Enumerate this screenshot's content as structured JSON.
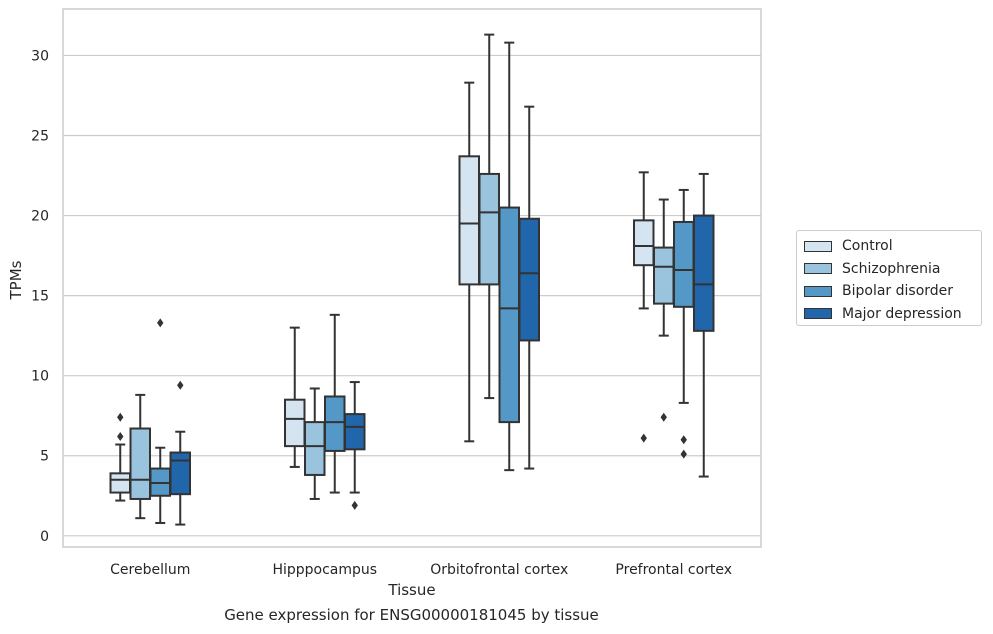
{
  "caption": "Gene expression for ENSG00000181045 by tissue",
  "chart_data": {
    "type": "box",
    "xlabel": "Tissue",
    "ylabel": "TPMs",
    "ylim": [
      -0.7,
      32.9
    ],
    "yticks": [
      0,
      5,
      10,
      15,
      20,
      25,
      30
    ],
    "grid": "horizontal",
    "legend_position": "right",
    "categories": [
      "Cerebellum",
      "Hipppocampus",
      "Orbitofrontal cortex",
      "Prefrontal cortex"
    ],
    "series": [
      {
        "name": "Control",
        "color": "#d4e4f1",
        "boxes": [
          {
            "whislo": 2.2,
            "q1": 2.7,
            "med": 3.5,
            "q3": 3.9,
            "whishi": 5.7,
            "fliers": [
              6.2,
              7.4
            ]
          },
          {
            "whislo": 4.3,
            "q1": 5.6,
            "med": 7.3,
            "q3": 8.5,
            "whishi": 13.0,
            "fliers": []
          },
          {
            "whislo": 5.9,
            "q1": 15.7,
            "med": 19.5,
            "q3": 23.7,
            "whishi": 28.3,
            "fliers": []
          },
          {
            "whislo": 14.2,
            "q1": 16.9,
            "med": 18.1,
            "q3": 19.7,
            "whishi": 22.7,
            "fliers": [
              6.1
            ]
          }
        ]
      },
      {
        "name": "Schizophrenia",
        "color": "#9ac3de",
        "boxes": [
          {
            "whislo": 1.1,
            "q1": 2.3,
            "med": 3.5,
            "q3": 6.7,
            "whishi": 8.8,
            "fliers": []
          },
          {
            "whislo": 2.3,
            "q1": 3.8,
            "med": 5.6,
            "q3": 7.1,
            "whishi": 9.2,
            "fliers": []
          },
          {
            "whislo": 8.6,
            "q1": 15.7,
            "med": 20.2,
            "q3": 22.6,
            "whishi": 31.3,
            "fliers": []
          },
          {
            "whislo": 12.5,
            "q1": 14.5,
            "med": 16.8,
            "q3": 18.0,
            "whishi": 21.0,
            "fliers": [
              7.4
            ]
          }
        ]
      },
      {
        "name": "Bipolar disorder",
        "color": "#5398c7",
        "boxes": [
          {
            "whislo": 0.8,
            "q1": 2.5,
            "med": 3.3,
            "q3": 4.2,
            "whishi": 5.5,
            "fliers": [
              13.3
            ]
          },
          {
            "whislo": 2.7,
            "q1": 5.3,
            "med": 7.1,
            "q3": 8.7,
            "whishi": 13.8,
            "fliers": []
          },
          {
            "whislo": 4.1,
            "q1": 7.1,
            "med": 14.2,
            "q3": 20.5,
            "whishi": 30.8,
            "fliers": []
          },
          {
            "whislo": 8.3,
            "q1": 14.3,
            "med": 16.6,
            "q3": 19.6,
            "whishi": 21.6,
            "fliers": [
              6.0,
              5.1
            ]
          }
        ]
      },
      {
        "name": "Major depression",
        "color": "#2166ab",
        "boxes": [
          {
            "whislo": 0.7,
            "q1": 2.6,
            "med": 4.7,
            "q3": 5.2,
            "whishi": 6.5,
            "fliers": [
              9.4
            ]
          },
          {
            "whislo": 2.7,
            "q1": 5.4,
            "med": 6.8,
            "q3": 7.6,
            "whishi": 9.6,
            "fliers": [
              1.9
            ]
          },
          {
            "whislo": 4.2,
            "q1": 12.2,
            "med": 16.4,
            "q3": 19.8,
            "whishi": 26.8,
            "fliers": []
          },
          {
            "whislo": 3.7,
            "q1": 12.8,
            "med": 15.7,
            "q3": 20.0,
            "whishi": 22.6,
            "fliers": []
          }
        ]
      }
    ]
  }
}
